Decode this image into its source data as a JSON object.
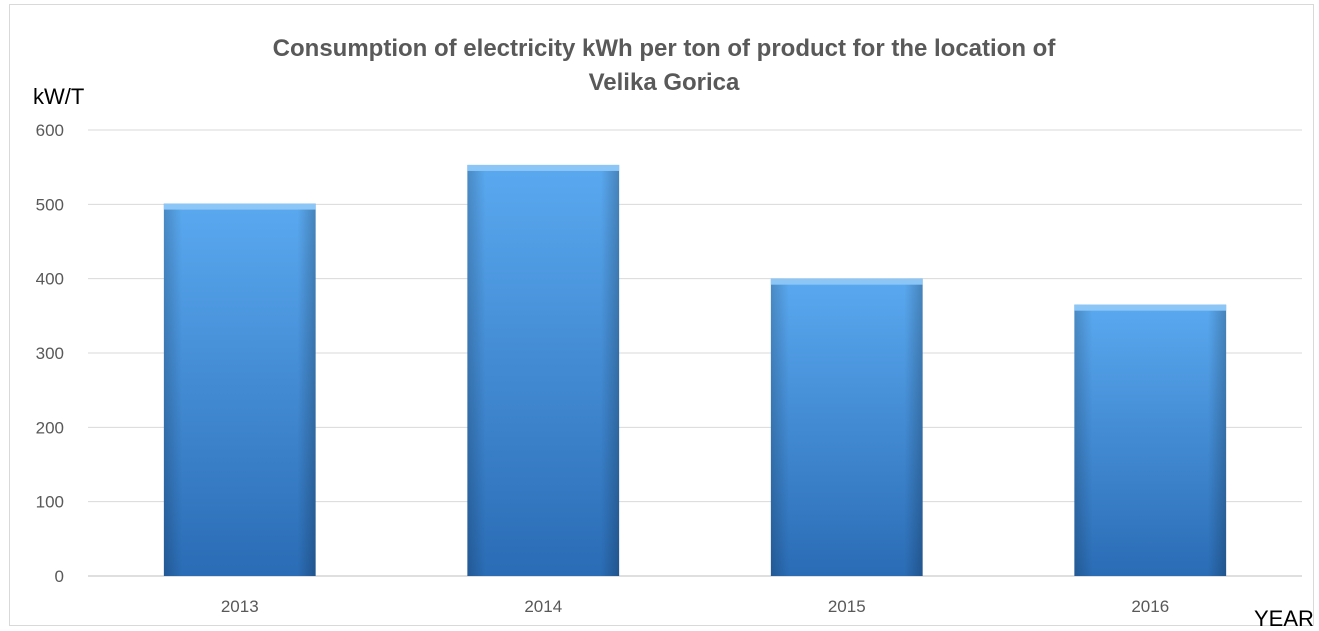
{
  "chart_data": {
    "type": "bar",
    "title": "Consumption of electricity kWh per ton of product for the location of",
    "title_line2": "Velika Gorica",
    "ylabel": "kW/T",
    "xlabel": "YEAR",
    "categories": [
      "2013",
      "2014",
      "2015",
      "2016"
    ],
    "values": [
      501,
      553,
      400,
      365
    ],
    "ylim": [
      0,
      600
    ],
    "yticks": [
      0,
      100,
      200,
      300,
      400,
      500,
      600
    ],
    "grid": true,
    "legend": "none",
    "colors": {
      "bar_top": "#5aa9f0",
      "bar_mid": "#3d8fde",
      "bar_bottom": "#2a6cb5",
      "grid": "#d9d9d9",
      "title": "#595959",
      "tick": "#595959"
    }
  }
}
